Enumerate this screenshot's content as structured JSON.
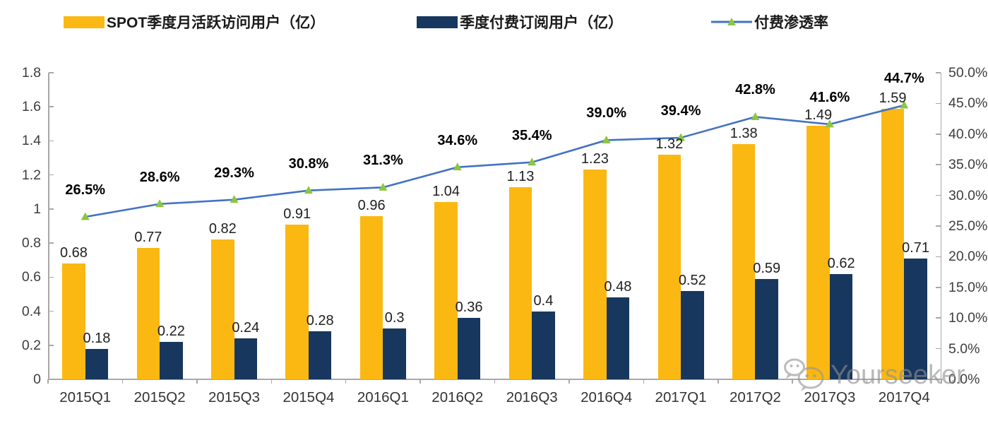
{
  "legend": [
    {
      "label": "SPOT季度月活跃访问用户（亿）",
      "swatch": "bar",
      "color": "#FBB812"
    },
    {
      "label": "季度付费订阅用户（亿）",
      "swatch": "bar",
      "color": "#17375E"
    },
    {
      "label": "付费渗透率",
      "swatch": "line",
      "color": "#4472C4",
      "marker_color": "#8DC63F"
    }
  ],
  "watermark": {
    "text": "Yourseeker",
    "icon": "wechat-icon"
  },
  "chart_data": {
    "type": "bar",
    "categories": [
      "2015Q1",
      "2015Q2",
      "2015Q3",
      "2015Q4",
      "2016Q1",
      "2016Q2",
      "2016Q3",
      "2016Q4",
      "2017Q1",
      "2017Q2",
      "2017Q3",
      "2017Q4"
    ],
    "series": [
      {
        "name": "SPOT季度月活跃访问用户（亿）",
        "type": "bar",
        "axis": "left",
        "color": "#FBB812",
        "values": [
          0.68,
          0.77,
          0.82,
          0.91,
          0.96,
          1.04,
          1.13,
          1.23,
          1.32,
          1.38,
          1.49,
          1.59
        ],
        "labels": [
          "0.68",
          "0.77",
          "0.82",
          "0.91",
          "0.96",
          "1.04",
          "1.13",
          "1.23",
          "1.32",
          "1.38",
          "1.49",
          "1.59"
        ]
      },
      {
        "name": "季度付费订阅用户（亿）",
        "type": "bar",
        "axis": "left",
        "color": "#17375E",
        "values": [
          0.18,
          0.22,
          0.24,
          0.28,
          0.3,
          0.36,
          0.4,
          0.48,
          0.52,
          0.59,
          0.62,
          0.71
        ],
        "labels": [
          "0.18",
          "0.22",
          "0.24",
          "0.28",
          "0.3",
          "0.36",
          "0.4",
          "0.48",
          "0.52",
          "0.59",
          "0.62",
          "0.71"
        ]
      },
      {
        "name": "付费渗透率",
        "type": "line",
        "axis": "right",
        "color": "#4472C4",
        "marker": "triangle",
        "marker_color": "#8DC63F",
        "values": [
          26.5,
          28.6,
          29.3,
          30.8,
          31.3,
          34.6,
          35.4,
          39.0,
          39.4,
          42.8,
          41.6,
          44.7
        ],
        "labels": [
          "26.5%",
          "28.6%",
          "29.3%",
          "30.8%",
          "31.3%",
          "34.6%",
          "35.4%",
          "39.0%",
          "39.4%",
          "42.8%",
          "41.6%",
          "44.7%"
        ]
      }
    ],
    "left_axis": {
      "min": 0,
      "max": 1.8,
      "step": 0.2,
      "tick_labels": [
        "0",
        "0.2",
        "0.4",
        "0.6",
        "0.8",
        "1",
        "1.2",
        "1.4",
        "1.6",
        "1.8"
      ]
    },
    "right_axis": {
      "min": 0,
      "max": 50,
      "step": 5,
      "tick_labels": [
        "0.0%",
        "5.0%",
        "10.0%",
        "15.0%",
        "20.0%",
        "25.0%",
        "30.0%",
        "35.0%",
        "40.0%",
        "45.0%",
        "50.0%"
      ]
    },
    "grid": false,
    "legend_position": "top"
  }
}
